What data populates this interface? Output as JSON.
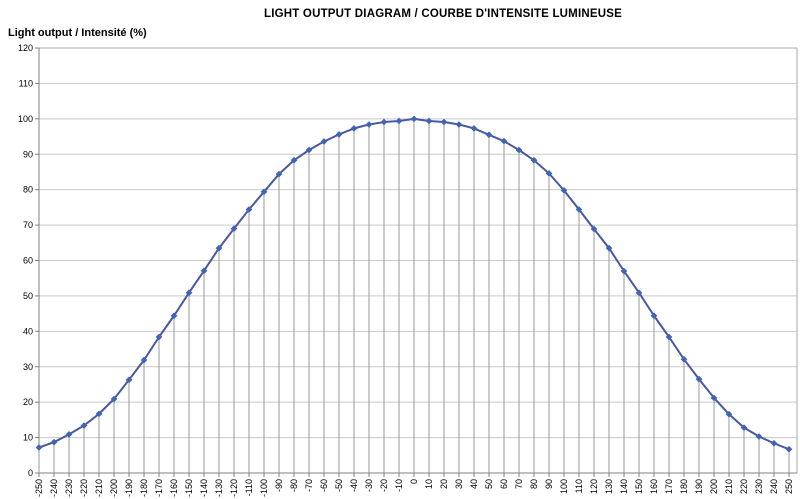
{
  "chart_data": {
    "type": "line",
    "title": "LIGHT OUTPUT DIAGRAM / COURBE D'INTENSITE LUMINEUSE",
    "ylabel": "Light output / Intensité (%)",
    "xlabel": "",
    "x": [
      -250,
      -240,
      -230,
      -220,
      -210,
      -200,
      -190,
      -180,
      -170,
      -160,
      -150,
      -140,
      -130,
      -120,
      -110,
      -100,
      -90,
      -80,
      -70,
      -60,
      -50,
      -40,
      -30,
      -20,
      -10,
      0,
      10,
      20,
      30,
      40,
      50,
      60,
      70,
      80,
      90,
      100,
      110,
      120,
      130,
      140,
      150,
      160,
      170,
      180,
      190,
      200,
      210,
      220,
      230,
      240,
      250
    ],
    "series": [
      {
        "name": "Light output / Intensité (%)",
        "values": [
          7.2,
          8.7,
          10.9,
          13.4,
          16.7,
          20.9,
          26.3,
          31.9,
          38.4,
          44.4,
          50.9,
          57.1,
          63.5,
          69.0,
          74.4,
          79.4,
          84.4,
          88.3,
          91.2,
          93.6,
          95.6,
          97.3,
          98.4,
          99.1,
          99.4,
          100,
          99.4,
          99.1,
          98.4,
          97.3,
          95.5,
          93.7,
          91.2,
          88.3,
          84.6,
          79.8,
          74.4,
          68.9,
          63.5,
          57.0,
          50.9,
          44.4,
          38.4,
          32.1,
          26.5,
          21.2,
          16.6,
          12.8,
          10.3,
          8.4,
          6.7
        ]
      }
    ],
    "ylim": [
      0,
      120
    ],
    "y_tick_step": 10,
    "x_tick_labels": [
      "-250",
      "-240",
      "-230",
      "-220",
      "-210",
      "-200",
      "-190",
      "-180",
      "-170",
      "-160",
      "-150",
      "-140",
      "-130",
      "-120",
      "-110",
      "-100",
      "-90",
      "-80",
      "-70",
      "-60",
      "-50",
      "-40",
      "-30",
      "-20",
      "-10",
      "0",
      "10",
      "20",
      "30",
      "40",
      "50",
      "60",
      "70",
      "80",
      "90",
      "100",
      "110",
      "120",
      "130",
      "140",
      "150",
      "160",
      "170",
      "180",
      "190",
      "200",
      "210",
      "220",
      "230",
      "240",
      "250"
    ],
    "grid": "horizontal",
    "legend": "none",
    "drop_lines": true,
    "marker": "diamond",
    "colors": {
      "line": "#4a58a2",
      "marker": "#4066b2",
      "gridline": "#c9c9c9",
      "drop_line": "#999999",
      "axis": "#808080",
      "plot_border": "#aaaaaa",
      "text": "#000000",
      "background": "#ffffff"
    }
  }
}
